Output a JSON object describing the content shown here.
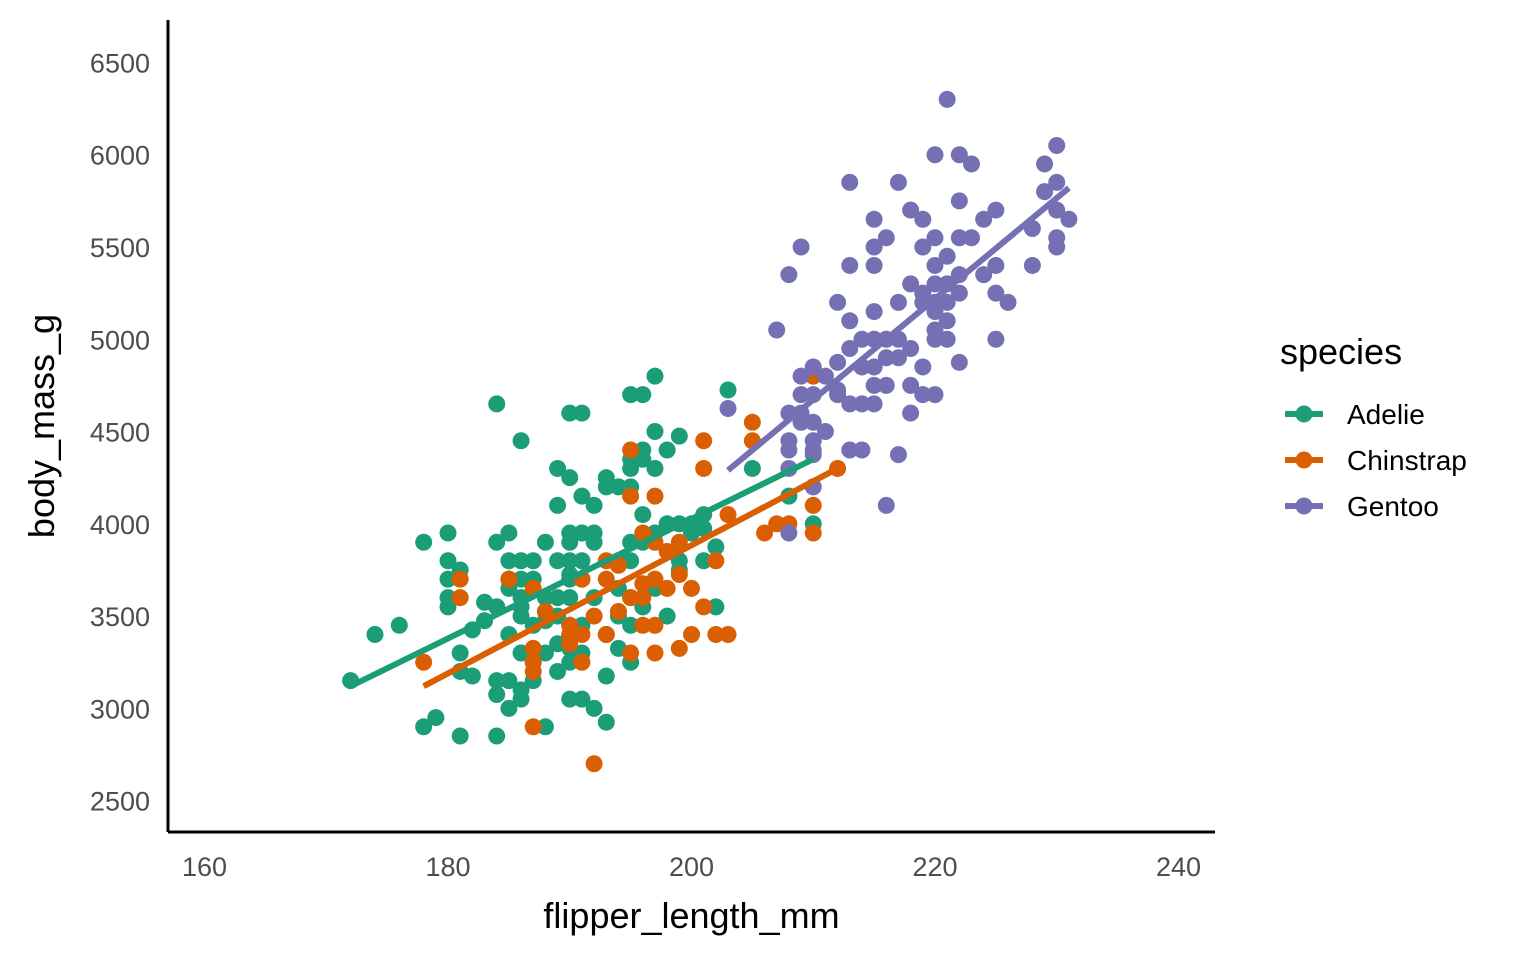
{
  "chart_data": {
    "type": "scatter",
    "xlabel": "flipper_length_mm",
    "ylabel": "body_mass_g",
    "xlim": [
      157,
      243
    ],
    "ylim": [
      2330,
      6730
    ],
    "x_ticks": [
      160,
      180,
      200,
      220,
      240
    ],
    "y_ticks": [
      2500,
      3000,
      3500,
      4000,
      4500,
      5000,
      5500,
      6000,
      6500
    ],
    "grid": false,
    "legend": {
      "title": "species",
      "position": "right"
    },
    "series": [
      {
        "name": "Adelie",
        "color": "#1b9e77",
        "trend_line": {
          "x": [
            172,
            210
          ],
          "y": [
            3120,
            4350
          ]
        },
        "points": [
          [
            172,
            3150
          ],
          [
            174,
            3400
          ],
          [
            176,
            3450
          ],
          [
            178,
            3900
          ],
          [
            178,
            2900
          ],
          [
            179,
            2950
          ],
          [
            180,
            3950
          ],
          [
            180,
            3800
          ],
          [
            180,
            3700
          ],
          [
            180,
            3600
          ],
          [
            180,
            3550
          ],
          [
            181,
            3750
          ],
          [
            181,
            3300
          ],
          [
            181,
            3200
          ],
          [
            181,
            2850
          ],
          [
            182,
            3175
          ],
          [
            182,
            3425
          ],
          [
            183,
            3575
          ],
          [
            183,
            3475
          ],
          [
            184,
            3550
          ],
          [
            184,
            3150
          ],
          [
            184,
            3075
          ],
          [
            184,
            3900
          ],
          [
            184,
            3550
          ],
          [
            184,
            2850
          ],
          [
            184,
            4650
          ],
          [
            185,
            3950
          ],
          [
            185,
            3800
          ],
          [
            185,
            3700
          ],
          [
            185,
            3400
          ],
          [
            185,
            3650
          ],
          [
            185,
            3000
          ],
          [
            185,
            3150
          ],
          [
            186,
            3100
          ],
          [
            186,
            4450
          ],
          [
            186,
            3800
          ],
          [
            186,
            3700
          ],
          [
            186,
            3600
          ],
          [
            186,
            3500
          ],
          [
            186,
            3050
          ],
          [
            186,
            3300
          ],
          [
            186,
            3550
          ],
          [
            187,
            3800
          ],
          [
            187,
            3700
          ],
          [
            187,
            3450
          ],
          [
            187,
            3250
          ],
          [
            187,
            3150
          ],
          [
            188,
            3525
          ],
          [
            188,
            3900
          ],
          [
            188,
            3600
          ],
          [
            188,
            3300
          ],
          [
            188,
            2900
          ],
          [
            188,
            3475
          ],
          [
            189,
            4300
          ],
          [
            189,
            4100
          ],
          [
            189,
            3800
          ],
          [
            189,
            3600
          ],
          [
            189,
            3200
          ],
          [
            189,
            3350
          ],
          [
            189,
            3500
          ],
          [
            190,
            3950
          ],
          [
            190,
            3900
          ],
          [
            190,
            3800
          ],
          [
            190,
            3700
          ],
          [
            190,
            3600
          ],
          [
            190,
            3450
          ],
          [
            190,
            3400
          ],
          [
            190,
            3050
          ],
          [
            190,
            3325
          ],
          [
            190,
            3250
          ],
          [
            190,
            4250
          ],
          [
            190,
            4600
          ],
          [
            190,
            3725
          ],
          [
            191,
            4600
          ],
          [
            191,
            4150
          ],
          [
            191,
            3950
          ],
          [
            191,
            3800
          ],
          [
            191,
            3700
          ],
          [
            191,
            3450
          ],
          [
            191,
            3050
          ],
          [
            191,
            3300
          ],
          [
            192,
            4100
          ],
          [
            192,
            3950
          ],
          [
            192,
            3900
          ],
          [
            192,
            3000
          ],
          [
            192,
            3600
          ],
          [
            193,
            4250
          ],
          [
            193,
            4200
          ],
          [
            193,
            2925
          ],
          [
            193,
            3400
          ],
          [
            193,
            3175
          ],
          [
            194,
            4200
          ],
          [
            194,
            3800
          ],
          [
            194,
            3650
          ],
          [
            194,
            3500
          ],
          [
            194,
            3325
          ],
          [
            195,
            4700
          ],
          [
            195,
            4350
          ],
          [
            195,
            4300
          ],
          [
            195,
            4200
          ],
          [
            195,
            3900
          ],
          [
            195,
            3800
          ],
          [
            195,
            3600
          ],
          [
            195,
            3450
          ],
          [
            195,
            3250
          ],
          [
            196,
            4700
          ],
          [
            196,
            4400
          ],
          [
            196,
            4350
          ],
          [
            196,
            4050
          ],
          [
            196,
            3900
          ],
          [
            196,
            3550
          ],
          [
            197,
            4800
          ],
          [
            197,
            4500
          ],
          [
            197,
            4300
          ],
          [
            197,
            3950
          ],
          [
            197,
            3650
          ],
          [
            198,
            4400
          ],
          [
            198,
            4000
          ],
          [
            198,
            3500
          ],
          [
            199,
            4475
          ],
          [
            199,
            4000
          ],
          [
            199,
            3800
          ],
          [
            199,
            3750
          ],
          [
            200,
            4000
          ],
          [
            200,
            3950
          ],
          [
            201,
            4050
          ],
          [
            201,
            3975
          ],
          [
            201,
            3800
          ],
          [
            202,
            3550
          ],
          [
            202,
            3875
          ],
          [
            203,
            4725
          ],
          [
            205,
            4300
          ],
          [
            208,
            4150
          ],
          [
            210,
            4000
          ]
        ]
      },
      {
        "name": "Chinstrap",
        "color": "#d95f02",
        "trend_line": {
          "x": [
            178,
            212
          ],
          "y": [
            3120,
            4300
          ]
        },
        "points": [
          [
            178,
            3250
          ],
          [
            181,
            3700
          ],
          [
            181,
            3600
          ],
          [
            185,
            3700
          ],
          [
            187,
            3650
          ],
          [
            187,
            3325
          ],
          [
            187,
            3200
          ],
          [
            187,
            3250
          ],
          [
            187,
            2900
          ],
          [
            188,
            3525
          ],
          [
            190,
            3450
          ],
          [
            190,
            3400
          ],
          [
            190,
            3350
          ],
          [
            191,
            3700
          ],
          [
            191,
            3400
          ],
          [
            191,
            3250
          ],
          [
            192,
            3500
          ],
          [
            192,
            2700
          ],
          [
            193,
            3700
          ],
          [
            193,
            3800
          ],
          [
            193,
            3400
          ],
          [
            194,
            3775
          ],
          [
            194,
            3525
          ],
          [
            195,
            4400
          ],
          [
            195,
            4150
          ],
          [
            195,
            3600
          ],
          [
            195,
            3300
          ],
          [
            196,
            3950
          ],
          [
            196,
            3675
          ],
          [
            196,
            3450
          ],
          [
            196,
            3600
          ],
          [
            197,
            3700
          ],
          [
            197,
            3450
          ],
          [
            197,
            3300
          ],
          [
            197,
            3900
          ],
          [
            197,
            4150
          ],
          [
            198,
            3650
          ],
          [
            198,
            3850
          ],
          [
            199,
            3900
          ],
          [
            199,
            3325
          ],
          [
            199,
            3725
          ],
          [
            200,
            3650
          ],
          [
            200,
            3400
          ],
          [
            201,
            4450
          ],
          [
            201,
            4300
          ],
          [
            201,
            3550
          ],
          [
            202,
            3400
          ],
          [
            202,
            3800
          ],
          [
            203,
            3400
          ],
          [
            203,
            4050
          ],
          [
            205,
            4550
          ],
          [
            205,
            4450
          ],
          [
            206,
            3950
          ],
          [
            207,
            4000
          ],
          [
            208,
            4000
          ],
          [
            210,
            4800
          ],
          [
            210,
            4100
          ],
          [
            210,
            3950
          ],
          [
            212,
            4300
          ]
        ]
      },
      {
        "name": "Gentoo",
        "color": "#7570b3",
        "trend_line": {
          "x": [
            203,
            231
          ],
          "y": [
            4290,
            5820
          ]
        },
        "points": [
          [
            203,
            4625
          ],
          [
            207,
            5050
          ],
          [
            208,
            5350
          ],
          [
            208,
            4400
          ],
          [
            208,
            4450
          ],
          [
            208,
            4600
          ],
          [
            208,
            4300
          ],
          [
            208,
            3950
          ],
          [
            209,
            5500
          ],
          [
            209,
            4700
          ],
          [
            209,
            4800
          ],
          [
            209,
            4600
          ],
          [
            209,
            4550
          ],
          [
            210,
            4850
          ],
          [
            210,
            4700
          ],
          [
            210,
            4550
          ],
          [
            210,
            4450
          ],
          [
            210,
            4375
          ],
          [
            210,
            4400
          ],
          [
            210,
            4200
          ],
          [
            211,
            4800
          ],
          [
            211,
            4500
          ],
          [
            212,
            4875
          ],
          [
            212,
            4725
          ],
          [
            212,
            4700
          ],
          [
            212,
            5200
          ],
          [
            213,
            5850
          ],
          [
            213,
            5400
          ],
          [
            213,
            5100
          ],
          [
            213,
            4950
          ],
          [
            213,
            4650
          ],
          [
            213,
            4400
          ],
          [
            214,
            5000
          ],
          [
            214,
            4850
          ],
          [
            214,
            4400
          ],
          [
            214,
            4650
          ],
          [
            215,
            5650
          ],
          [
            215,
            5500
          ],
          [
            215,
            5400
          ],
          [
            215,
            5150
          ],
          [
            215,
            5000
          ],
          [
            215,
            4850
          ],
          [
            215,
            4750
          ],
          [
            215,
            4650
          ],
          [
            216,
            4100
          ],
          [
            216,
            4900
          ],
          [
            216,
            4750
          ],
          [
            216,
            5550
          ],
          [
            216,
            5000
          ],
          [
            217,
            5850
          ],
          [
            217,
            5200
          ],
          [
            217,
            5000
          ],
          [
            217,
            4375
          ],
          [
            217,
            4900
          ],
          [
            218,
            5700
          ],
          [
            218,
            5300
          ],
          [
            218,
            4950
          ],
          [
            218,
            4600
          ],
          [
            218,
            4750
          ],
          [
            219,
            5650
          ],
          [
            219,
            5500
          ],
          [
            219,
            5250
          ],
          [
            219,
            5200
          ],
          [
            219,
            4700
          ],
          [
            219,
            4850
          ],
          [
            220,
            6000
          ],
          [
            220,
            5550
          ],
          [
            220,
            5400
          ],
          [
            220,
            5300
          ],
          [
            220,
            5200
          ],
          [
            220,
            5150
          ],
          [
            220,
            5050
          ],
          [
            220,
            5000
          ],
          [
            220,
            4700
          ],
          [
            221,
            6300
          ],
          [
            221,
            5450
          ],
          [
            221,
            5300
          ],
          [
            221,
            5100
          ],
          [
            221,
            5000
          ],
          [
            221,
            5200
          ],
          [
            222,
            6000
          ],
          [
            222,
            5750
          ],
          [
            222,
            5550
          ],
          [
            222,
            5350
          ],
          [
            222,
            5250
          ],
          [
            222,
            4875
          ],
          [
            223,
            5950
          ],
          [
            223,
            5550
          ],
          [
            224,
            5650
          ],
          [
            224,
            5350
          ],
          [
            225,
            5700
          ],
          [
            225,
            5250
          ],
          [
            225,
            5400
          ],
          [
            225,
            5000
          ],
          [
            226,
            5200
          ],
          [
            228,
            5600
          ],
          [
            228,
            5400
          ],
          [
            229,
            5950
          ],
          [
            229,
            5800
          ],
          [
            230,
            6050
          ],
          [
            230,
            5850
          ],
          [
            230,
            5700
          ],
          [
            230,
            5550
          ],
          [
            230,
            5500
          ],
          [
            231,
            5650
          ]
        ]
      }
    ]
  }
}
